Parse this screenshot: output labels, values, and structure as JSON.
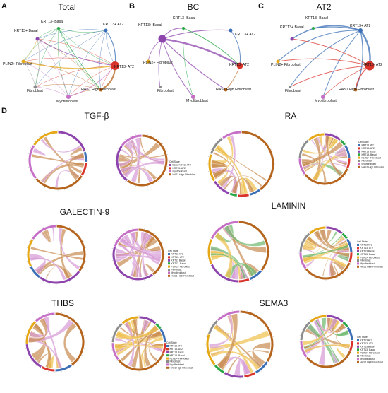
{
  "panels": [
    {
      "letter": "A",
      "title": "Total"
    },
    {
      "letter": "B",
      "title": "BC"
    },
    {
      "letter": "C",
      "title": "AT2"
    },
    {
      "letter": "D",
      "title": ""
    }
  ],
  "network_nodes": [
    "KRT13+ Basal",
    "KRT13- Basal",
    "KRT13+ AT2",
    "KRT13- AT2",
    "HAS1 High Fibroblast",
    "Myofibroblast",
    "Fibroblast",
    "PLIN2+ Fibroblast"
  ],
  "node_labels": {
    "A": {
      "basal_pos": "KRT13+ Basal",
      "basal_neg": "KRT13- Basal",
      "at2_pos": "KRT13+ AT2",
      "at2_neg": "KRT13- AT2",
      "has1": "HAS1 High Fibroblast",
      "myo": "Myofibroblast",
      "fib": "Fibroblast",
      "plin2": "PLIN2+ Fibroblast"
    },
    "B": {
      "basal_pos": "KRT13+ Basal",
      "basal_neg": "KRT13- Basal",
      "at2_pos": "KRT13+ AT2",
      "at2_neg": "KRT13- AT2",
      "has1": "HAS1 High Fibroblast",
      "myo": "Myofibroblast",
      "fib": "Fibroblast",
      "plin2": "PLIN2+ Fibroblast"
    },
    "C": {
      "basal_pos": "KRT13+ Basal",
      "basal_neg": "KRT13- Basal",
      "at2_pos": "KRT13+ AT2",
      "at2_neg": "KRT13- AT2",
      "has1": "HAS1 High Fibroblast",
      "myo": "Myofibroblast",
      "fib": "Fibroblast",
      "plin2": "PLIN2+ Fibroblast"
    }
  },
  "pathways": [
    "TGF-β",
    "RA",
    "GALECTIN-9",
    "LAMININ",
    "THBS",
    "SEMA3"
  ],
  "legend": {
    "title": "Cell State",
    "tgf_items": [
      "basal KRT13 AT2",
      "KRT13- AT2",
      "Myofibroblast",
      "HAS1 High Fibroblast"
    ],
    "full_items": [
      "KRT13 AT2",
      "KRT13- AT2",
      "KRT13 Basal",
      "KRT13- Basal",
      "PLIN2+ Fibroblast",
      "Fibroblast",
      "Myofibroblast",
      "HAS1 High Fibroblast"
    ]
  },
  "colors": {
    "at2_pos": "#3b6fb6",
    "at2_neg": "#d9342b",
    "basal_pos": "#8e44ad",
    "basal_neg": "#27a844",
    "plin2": "#e6a817",
    "fib": "#8c8c8c",
    "myo": "#c66fc6",
    "has1": "#b5651d",
    "chord_brown": "#c88a4e",
    "chord_pink": "#d69ad6",
    "chord_gold": "#f0c04a",
    "chord_green": "#6cb86c"
  }
}
